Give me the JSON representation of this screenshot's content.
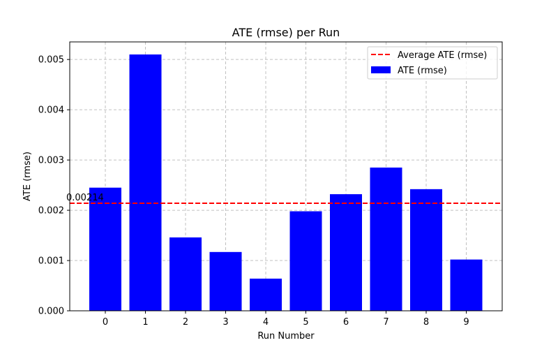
{
  "chart_data": {
    "type": "bar",
    "title": "ATE (rmse) per Run",
    "xlabel": "Run Number",
    "ylabel": "ATE (rmse)",
    "categories": [
      "0",
      "1",
      "2",
      "3",
      "4",
      "5",
      "6",
      "7",
      "8",
      "9"
    ],
    "series": [
      {
        "name": "ATE (rmse)",
        "values": [
          0.00245,
          0.0051,
          0.00146,
          0.00117,
          0.00064,
          0.00198,
          0.00232,
          0.00285,
          0.00242,
          0.00102
        ],
        "color": "#0000ff"
      }
    ],
    "reference_line": {
      "name": "Average ATE (rmse)",
      "value": 0.00214,
      "label": "0.00214",
      "color": "#ff0000",
      "style": "dashed"
    },
    "yticks": [
      "0.000",
      "0.001",
      "0.002",
      "0.003",
      "0.004",
      "0.005"
    ],
    "ylim": [
      0,
      0.00535
    ],
    "grid": true,
    "legend_position": "top-right"
  }
}
